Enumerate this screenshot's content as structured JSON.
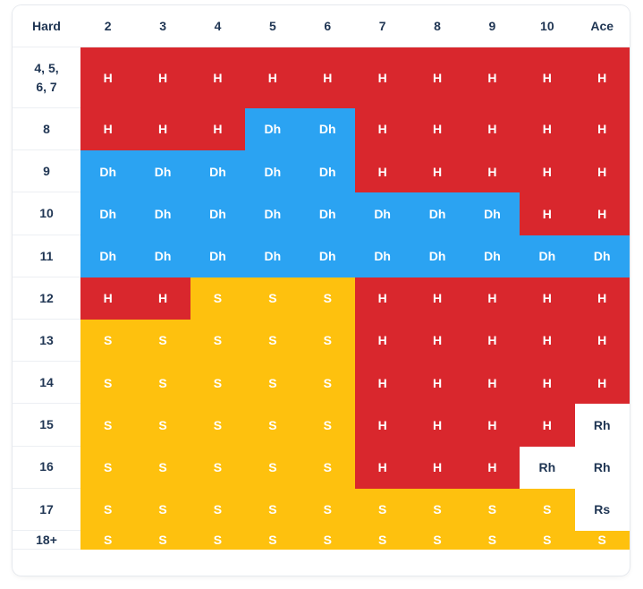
{
  "chart_data": {
    "type": "table",
    "corner_label": "Hard",
    "columns": [
      "2",
      "3",
      "4",
      "5",
      "6",
      "7",
      "8",
      "9",
      "10",
      "Ace"
    ],
    "rows": [
      {
        "label": "4, 5,\n6, 7",
        "cells": [
          "H",
          "H",
          "H",
          "H",
          "H",
          "H",
          "H",
          "H",
          "H",
          "H"
        ]
      },
      {
        "label": "8",
        "cells": [
          "H",
          "H",
          "H",
          "Dh",
          "Dh",
          "H",
          "H",
          "H",
          "H",
          "H"
        ]
      },
      {
        "label": "9",
        "cells": [
          "Dh",
          "Dh",
          "Dh",
          "Dh",
          "Dh",
          "H",
          "H",
          "H",
          "H",
          "H"
        ]
      },
      {
        "label": "10",
        "cells": [
          "Dh",
          "Dh",
          "Dh",
          "Dh",
          "Dh",
          "Dh",
          "Dh",
          "Dh",
          "H",
          "H"
        ]
      },
      {
        "label": "11",
        "cells": [
          "Dh",
          "Dh",
          "Dh",
          "Dh",
          "Dh",
          "Dh",
          "Dh",
          "Dh",
          "Dh",
          "Dh"
        ]
      },
      {
        "label": "12",
        "cells": [
          "H",
          "H",
          "S",
          "S",
          "S",
          "H",
          "H",
          "H",
          "H",
          "H"
        ]
      },
      {
        "label": "13",
        "cells": [
          "S",
          "S",
          "S",
          "S",
          "S",
          "H",
          "H",
          "H",
          "H",
          "H"
        ]
      },
      {
        "label": "14",
        "cells": [
          "S",
          "S",
          "S",
          "S",
          "S",
          "H",
          "H",
          "H",
          "H",
          "H"
        ]
      },
      {
        "label": "15",
        "cells": [
          "S",
          "S",
          "S",
          "S",
          "S",
          "H",
          "H",
          "H",
          "H",
          "Rh"
        ]
      },
      {
        "label": "16",
        "cells": [
          "S",
          "S",
          "S",
          "S",
          "S",
          "H",
          "H",
          "H",
          "Rh",
          "Rh"
        ]
      },
      {
        "label": "17",
        "cells": [
          "S",
          "S",
          "S",
          "S",
          "S",
          "S",
          "S",
          "S",
          "S",
          "Rs"
        ]
      },
      {
        "label": "18+",
        "cells": [
          "S",
          "S",
          "S",
          "S",
          "S",
          "S",
          "S",
          "S",
          "S",
          "S"
        ]
      }
    ]
  },
  "colors": {
    "H": "#d9272d",
    "S": "#fec10e",
    "Dh": "#2ba3f2",
    "Rh": "#ffffff",
    "Rs": "#ffffff",
    "header_text": "#1f3553"
  }
}
